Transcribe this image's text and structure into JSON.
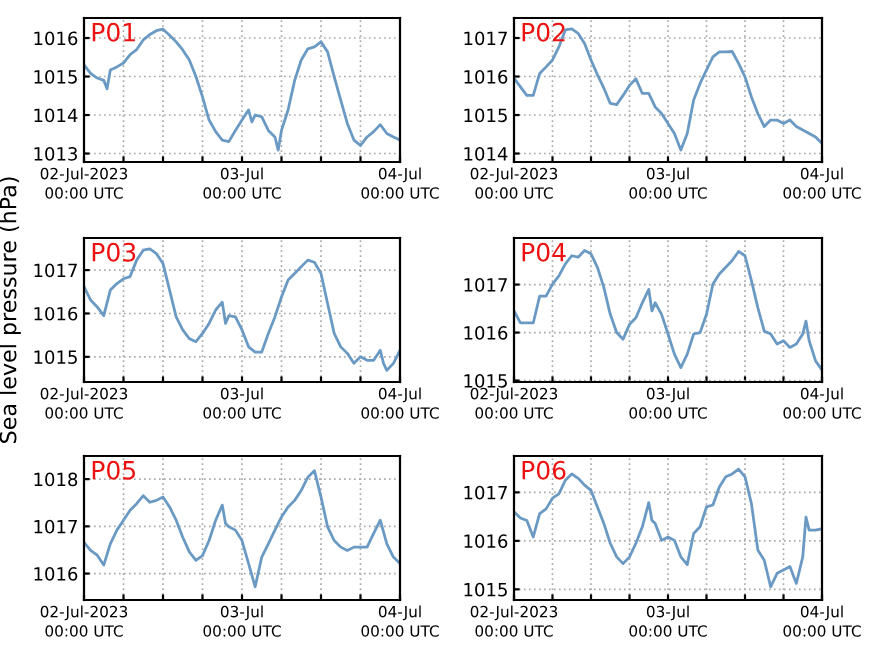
{
  "chart_data": [
    {
      "type": "line",
      "title": "P01",
      "x": [
        "2023-07-02T00:00",
        "2023-07-02T01:00",
        "2023-07-02T02:00",
        "2023-07-02T03:00",
        "2023-07-02T03:30",
        "2023-07-02T04:00",
        "2023-07-02T05:00",
        "2023-07-02T06:00",
        "2023-07-02T07:00",
        "2023-07-02T08:00",
        "2023-07-02T09:00",
        "2023-07-02T10:00",
        "2023-07-02T11:00",
        "2023-07-02T12:00",
        "2023-07-02T13:00",
        "2023-07-02T14:00",
        "2023-07-02T15:00",
        "2023-07-02T16:00",
        "2023-07-02T17:00",
        "2023-07-02T18:00",
        "2023-07-02T19:00",
        "2023-07-02T20:00",
        "2023-07-02T21:00",
        "2023-07-02T22:00",
        "2023-07-02T23:00",
        "2023-07-03T00:00",
        "2023-07-03T01:00",
        "2023-07-03T01:30",
        "2023-07-03T02:00",
        "2023-07-03T03:00",
        "2023-07-03T04:00",
        "2023-07-03T05:00",
        "2023-07-03T05:30",
        "2023-07-03T06:00",
        "2023-07-03T07:00",
        "2023-07-03T08:00",
        "2023-07-03T09:00",
        "2023-07-03T10:00",
        "2023-07-03T11:00",
        "2023-07-03T12:00",
        "2023-07-03T13:00",
        "2023-07-03T14:00",
        "2023-07-03T15:00",
        "2023-07-03T16:00",
        "2023-07-03T17:00",
        "2023-07-03T18:00",
        "2023-07-03T19:00",
        "2023-07-03T20:00",
        "2023-07-03T21:00",
        "2023-07-03T22:00",
        "2023-07-03T23:00",
        "2023-07-04T00:00"
      ],
      "series": [
        {
          "color": "#6a9ac4",
          "values": [
            1015.3,
            1015.08,
            1014.96,
            1014.9,
            1014.68,
            1015.17,
            1015.25,
            1015.35,
            1015.57,
            1015.7,
            1015.95,
            1016.09,
            1016.19,
            1016.23,
            1016.07,
            1015.9,
            1015.69,
            1015.43,
            1015.0,
            1014.47,
            1013.87,
            1013.57,
            1013.35,
            1013.31,
            1013.6,
            1013.87,
            1014.13,
            1013.82,
            1014.0,
            1013.95,
            1013.6,
            1013.43,
            1013.09,
            1013.6,
            1014.13,
            1014.9,
            1015.43,
            1015.72,
            1015.77,
            1015.9,
            1015.64,
            1015.0,
            1014.39,
            1013.78,
            1013.35,
            1013.21,
            1013.43,
            1013.57,
            1013.75,
            1013.52,
            1013.43,
            1013.35
          ]
        }
      ],
      "xlim": [
        "2023-07-02T00:00",
        "2023-07-04T00:00"
      ],
      "xticks": [
        {
          "value": "2023-07-02T00:00",
          "label": "02-Jul-2023\n00:00 UTC"
        },
        {
          "value": "2023-07-02T06:00",
          "label": null
        },
        {
          "value": "2023-07-02T12:00",
          "label": null
        },
        {
          "value": "2023-07-02T18:00",
          "label": null
        },
        {
          "value": "2023-07-03T00:00",
          "label": "03-Jul\n00:00 UTC"
        },
        {
          "value": "2023-07-03T06:00",
          "label": null
        },
        {
          "value": "2023-07-03T12:00",
          "label": null
        },
        {
          "value": "2023-07-03T18:00",
          "label": null
        },
        {
          "value": "2023-07-04T00:00",
          "label": "04-Jul\n00:00 UTC"
        }
      ],
      "ylim": [
        1012.78,
        1016.52
      ],
      "yticks": [
        1013,
        1014,
        1015,
        1016
      ],
      "grid": true
    },
    {
      "type": "line",
      "title": "P02",
      "x": [
        "2023-07-02T00:00",
        "2023-07-02T01:00",
        "2023-07-02T02:00",
        "2023-07-02T03:00",
        "2023-07-02T04:00",
        "2023-07-02T05:00",
        "2023-07-02T06:00",
        "2023-07-02T07:00",
        "2023-07-02T08:00",
        "2023-07-02T09:00",
        "2023-07-02T10:00",
        "2023-07-02T11:00",
        "2023-07-02T12:00",
        "2023-07-02T13:00",
        "2023-07-02T14:00",
        "2023-07-02T15:00",
        "2023-07-02T16:00",
        "2023-07-02T17:00",
        "2023-07-02T18:00",
        "2023-07-02T19:00",
        "2023-07-02T20:00",
        "2023-07-02T21:00",
        "2023-07-02T22:00",
        "2023-07-02T23:00",
        "2023-07-03T00:00",
        "2023-07-03T01:00",
        "2023-07-03T02:00",
        "2023-07-03T03:00",
        "2023-07-03T04:00",
        "2023-07-03T05:00",
        "2023-07-03T06:00",
        "2023-07-03T07:00",
        "2023-07-03T08:00",
        "2023-07-03T09:00",
        "2023-07-03T10:00",
        "2023-07-03T11:00",
        "2023-07-03T12:00",
        "2023-07-03T13:00",
        "2023-07-03T14:00",
        "2023-07-03T15:00",
        "2023-07-03T16:00",
        "2023-07-03T17:00",
        "2023-07-03T18:00",
        "2023-07-03T19:00",
        "2023-07-03T20:00",
        "2023-07-03T21:00",
        "2023-07-03T22:00",
        "2023-07-03T23:00",
        "2023-07-04T00:00"
      ],
      "series": [
        {
          "color": "#6a9ac4",
          "values": [
            1015.96,
            1015.73,
            1015.51,
            1015.51,
            1016.08,
            1016.25,
            1016.43,
            1016.77,
            1017.21,
            1017.24,
            1017.12,
            1016.86,
            1016.43,
            1016.05,
            1015.7,
            1015.3,
            1015.27,
            1015.51,
            1015.77,
            1015.94,
            1015.56,
            1015.56,
            1015.21,
            1015.04,
            1014.78,
            1014.52,
            1014.09,
            1014.52,
            1015.39,
            1015.82,
            1016.17,
            1016.51,
            1016.64,
            1016.64,
            1016.65,
            1016.34,
            1015.99,
            1015.47,
            1015.04,
            1014.7,
            1014.87,
            1014.87,
            1014.78,
            1014.87,
            1014.7,
            1014.61,
            1014.52,
            1014.43,
            1014.26
          ]
        }
      ],
      "xlim": [
        "2023-07-02T00:00",
        "2023-07-04T00:00"
      ],
      "xticks": [
        {
          "value": "2023-07-02T00:00",
          "label": "02-Jul-2023\n00:00 UTC"
        },
        {
          "value": "2023-07-02T06:00",
          "label": null
        },
        {
          "value": "2023-07-02T12:00",
          "label": null
        },
        {
          "value": "2023-07-02T18:00",
          "label": null
        },
        {
          "value": "2023-07-03T00:00",
          "label": "03-Jul\n00:00 UTC"
        },
        {
          "value": "2023-07-03T06:00",
          "label": null
        },
        {
          "value": "2023-07-03T12:00",
          "label": null
        },
        {
          "value": "2023-07-03T18:00",
          "label": null
        },
        {
          "value": "2023-07-04T00:00",
          "label": "04-Jul\n00:00 UTC"
        }
      ],
      "ylim": [
        1013.78,
        1017.52
      ],
      "yticks": [
        1014,
        1015,
        1016,
        1017
      ],
      "grid": true
    },
    {
      "type": "line",
      "title": "P03",
      "ylabel": "Sea level pressure (hPa)",
      "x": [
        "2023-07-02T00:00",
        "2023-07-02T01:00",
        "2023-07-02T02:00",
        "2023-07-02T03:00",
        "2023-07-02T04:00",
        "2023-07-02T05:00",
        "2023-07-02T06:00",
        "2023-07-02T07:00",
        "2023-07-02T08:00",
        "2023-07-02T09:00",
        "2023-07-02T10:00",
        "2023-07-02T11:00",
        "2023-07-02T12:00",
        "2023-07-02T13:00",
        "2023-07-02T14:00",
        "2023-07-02T15:00",
        "2023-07-02T16:00",
        "2023-07-02T17:00",
        "2023-07-02T18:00",
        "2023-07-02T19:00",
        "2023-07-02T20:00",
        "2023-07-02T21:00",
        "2023-07-02T21:30",
        "2023-07-02T22:00",
        "2023-07-02T23:00",
        "2023-07-03T00:00",
        "2023-07-03T01:00",
        "2023-07-03T02:00",
        "2023-07-03T03:00",
        "2023-07-03T04:00",
        "2023-07-03T05:00",
        "2023-07-03T06:00",
        "2023-07-03T07:00",
        "2023-07-03T08:00",
        "2023-07-03T09:00",
        "2023-07-03T10:00",
        "2023-07-03T11:00",
        "2023-07-03T12:00",
        "2023-07-03T13:00",
        "2023-07-03T14:00",
        "2023-07-03T15:00",
        "2023-07-03T16:00",
        "2023-07-03T17:00",
        "2023-07-03T18:00",
        "2023-07-03T19:00",
        "2023-07-03T20:00",
        "2023-07-03T21:00",
        "2023-07-03T21:30",
        "2023-07-03T22:00",
        "2023-07-03T23:00",
        "2023-07-04T00:00"
      ],
      "series": [
        {
          "color": "#6a9ac4",
          "values": [
            1016.62,
            1016.31,
            1016.15,
            1015.95,
            1016.54,
            1016.69,
            1016.8,
            1016.85,
            1017.23,
            1017.46,
            1017.49,
            1017.38,
            1017.15,
            1016.54,
            1015.92,
            1015.62,
            1015.42,
            1015.35,
            1015.54,
            1015.77,
            1016.08,
            1016.26,
            1015.77,
            1015.95,
            1015.92,
            1015.62,
            1015.23,
            1015.11,
            1015.11,
            1015.54,
            1015.92,
            1016.38,
            1016.77,
            1016.92,
            1017.08,
            1017.23,
            1017.18,
            1016.92,
            1016.23,
            1015.54,
            1015.23,
            1015.08,
            1014.85,
            1015.0,
            1014.92,
            1014.92,
            1015.15,
            1014.85,
            1014.69,
            1014.85,
            1015.15
          ]
        }
      ],
      "xlim": [
        "2023-07-02T00:00",
        "2023-07-04T00:00"
      ],
      "xticks": [
        {
          "value": "2023-07-02T00:00",
          "label": "02-Jul-2023\n00:00 UTC"
        },
        {
          "value": "2023-07-02T06:00",
          "label": null
        },
        {
          "value": "2023-07-02T12:00",
          "label": null
        },
        {
          "value": "2023-07-02T18:00",
          "label": null
        },
        {
          "value": "2023-07-03T00:00",
          "label": "03-Jul\n00:00 UTC"
        },
        {
          "value": "2023-07-03T06:00",
          "label": null
        },
        {
          "value": "2023-07-03T12:00",
          "label": null
        },
        {
          "value": "2023-07-03T18:00",
          "label": null
        },
        {
          "value": "2023-07-04T00:00",
          "label": "04-Jul\n00:00 UTC"
        }
      ],
      "ylim": [
        1014.42,
        1017.74
      ],
      "yticks": [
        1015,
        1016,
        1017
      ],
      "grid": true
    },
    {
      "type": "line",
      "title": "P04",
      "x": [
        "2023-07-02T00:00",
        "2023-07-02T01:00",
        "2023-07-02T02:00",
        "2023-07-02T03:00",
        "2023-07-02T04:00",
        "2023-07-02T05:00",
        "2023-07-02T06:00",
        "2023-07-02T07:00",
        "2023-07-02T08:00",
        "2023-07-02T09:00",
        "2023-07-02T10:00",
        "2023-07-02T11:00",
        "2023-07-02T12:00",
        "2023-07-02T13:00",
        "2023-07-02T14:00",
        "2023-07-02T15:00",
        "2023-07-02T16:00",
        "2023-07-02T17:00",
        "2023-07-02T18:00",
        "2023-07-02T19:00",
        "2023-07-02T20:00",
        "2023-07-02T21:00",
        "2023-07-02T21:30",
        "2023-07-02T22:00",
        "2023-07-02T23:00",
        "2023-07-03T00:00",
        "2023-07-03T01:00",
        "2023-07-03T02:00",
        "2023-07-03T03:00",
        "2023-07-03T04:00",
        "2023-07-03T05:00",
        "2023-07-03T06:00",
        "2023-07-03T07:00",
        "2023-07-03T08:00",
        "2023-07-03T09:00",
        "2023-07-03T10:00",
        "2023-07-03T11:00",
        "2023-07-03T12:00",
        "2023-07-03T13:00",
        "2023-07-03T14:00",
        "2023-07-03T15:00",
        "2023-07-03T16:00",
        "2023-07-03T17:00",
        "2023-07-03T18:00",
        "2023-07-03T19:00",
        "2023-07-03T20:00",
        "2023-07-03T21:00",
        "2023-07-03T21:30",
        "2023-07-03T22:00",
        "2023-07-03T23:00",
        "2023-07-04T00:00"
      ],
      "series": [
        {
          "color": "#6a9ac4",
          "values": [
            1016.45,
            1016.2,
            1016.2,
            1016.2,
            1016.76,
            1016.76,
            1017.01,
            1017.18,
            1017.43,
            1017.6,
            1017.57,
            1017.71,
            1017.64,
            1017.36,
            1016.94,
            1016.38,
            1016.0,
            1015.86,
            1016.17,
            1016.31,
            1016.62,
            1016.9,
            1016.45,
            1016.62,
            1016.38,
            1015.97,
            1015.55,
            1015.27,
            1015.55,
            1015.97,
            1016.0,
            1016.38,
            1017.01,
            1017.22,
            1017.36,
            1017.5,
            1017.69,
            1017.6,
            1017.08,
            1016.52,
            1016.03,
            1015.97,
            1015.76,
            1015.83,
            1015.69,
            1015.76,
            1015.97,
            1016.24,
            1015.83,
            1015.41,
            1015.22
          ]
        }
      ],
      "xlim": [
        "2023-07-02T00:00",
        "2023-07-04T00:00"
      ],
      "xticks": [
        {
          "value": "2023-07-02T00:00",
          "label": "02-Jul-2023\n00:00 UTC"
        },
        {
          "value": "2023-07-02T06:00",
          "label": null
        },
        {
          "value": "2023-07-02T12:00",
          "label": null
        },
        {
          "value": "2023-07-02T18:00",
          "label": null
        },
        {
          "value": "2023-07-03T00:00",
          "label": "03-Jul\n00:00 UTC"
        },
        {
          "value": "2023-07-03T06:00",
          "label": null
        },
        {
          "value": "2023-07-03T12:00",
          "label": null
        },
        {
          "value": "2023-07-03T18:00",
          "label": null
        },
        {
          "value": "2023-07-04T00:00",
          "label": "04-Jul\n00:00 UTC"
        }
      ],
      "ylim": [
        1014.97,
        1017.97
      ],
      "yticks": [
        1015,
        1016,
        1017
      ],
      "grid": true
    },
    {
      "type": "line",
      "title": "P05",
      "x": [
        "2023-07-02T00:00",
        "2023-07-02T01:00",
        "2023-07-02T02:00",
        "2023-07-02T03:00",
        "2023-07-02T04:00",
        "2023-07-02T05:00",
        "2023-07-02T06:00",
        "2023-07-02T07:00",
        "2023-07-02T08:00",
        "2023-07-02T09:00",
        "2023-07-02T10:00",
        "2023-07-02T11:00",
        "2023-07-02T12:00",
        "2023-07-02T13:00",
        "2023-07-02T14:00",
        "2023-07-02T15:00",
        "2023-07-02T16:00",
        "2023-07-02T17:00",
        "2023-07-02T18:00",
        "2023-07-02T19:00",
        "2023-07-02T20:00",
        "2023-07-02T21:00",
        "2023-07-02T21:30",
        "2023-07-02T22:00",
        "2023-07-02T23:00",
        "2023-07-03T00:00",
        "2023-07-03T01:00",
        "2023-07-03T02:00",
        "2023-07-03T03:00",
        "2023-07-03T04:00",
        "2023-07-03T05:00",
        "2023-07-03T06:00",
        "2023-07-03T07:00",
        "2023-07-03T08:00",
        "2023-07-03T09:00",
        "2023-07-03T10:00",
        "2023-07-03T11:00",
        "2023-07-03T12:00",
        "2023-07-03T13:00",
        "2023-07-03T14:00",
        "2023-07-03T15:00",
        "2023-07-03T16:00",
        "2023-07-03T17:00",
        "2023-07-03T18:00",
        "2023-07-03T19:00",
        "2023-07-03T20:00",
        "2023-07-03T21:00",
        "2023-07-03T22:00",
        "2023-07-03T23:00",
        "2023-07-04T00:00"
      ],
      "series": [
        {
          "color": "#6a9ac4",
          "values": [
            1016.66,
            1016.49,
            1016.39,
            1016.18,
            1016.63,
            1016.92,
            1017.13,
            1017.34,
            1017.48,
            1017.65,
            1017.51,
            1017.55,
            1017.62,
            1017.41,
            1017.13,
            1016.77,
            1016.46,
            1016.28,
            1016.38,
            1016.7,
            1017.13,
            1017.45,
            1017.06,
            1016.99,
            1016.92,
            1016.7,
            1016.21,
            1015.72,
            1016.35,
            1016.63,
            1016.92,
            1017.2,
            1017.41,
            1017.55,
            1017.76,
            1018.04,
            1018.18,
            1017.62,
            1016.99,
            1016.7,
            1016.56,
            1016.49,
            1016.56,
            1016.56,
            1016.56,
            1016.85,
            1017.13,
            1016.63,
            1016.35,
            1016.21
          ]
        }
      ],
      "xlim": [
        "2023-07-02T00:00",
        "2023-07-04T00:00"
      ],
      "xticks": [
        {
          "value": "2023-07-02T00:00",
          "label": "02-Jul-2023\n00:00 UTC"
        },
        {
          "value": "2023-07-02T06:00",
          "label": null
        },
        {
          "value": "2023-07-02T12:00",
          "label": null
        },
        {
          "value": "2023-07-02T18:00",
          "label": null
        },
        {
          "value": "2023-07-03T00:00",
          "label": "03-Jul\n00:00 UTC"
        },
        {
          "value": "2023-07-03T06:00",
          "label": null
        },
        {
          "value": "2023-07-03T12:00",
          "label": null
        },
        {
          "value": "2023-07-03T18:00",
          "label": null
        },
        {
          "value": "2023-07-04T00:00",
          "label": "04-Jul\n00:00 UTC"
        }
      ],
      "ylim": [
        1015.44,
        1018.49
      ],
      "yticks": [
        1016,
        1017,
        1018
      ],
      "grid": true
    },
    {
      "type": "line",
      "title": "P06",
      "x": [
        "2023-07-02T00:00",
        "2023-07-02T01:00",
        "2023-07-02T02:00",
        "2023-07-02T03:00",
        "2023-07-02T04:00",
        "2023-07-02T05:00",
        "2023-07-02T06:00",
        "2023-07-02T07:00",
        "2023-07-02T08:00",
        "2023-07-02T09:00",
        "2023-07-02T10:00",
        "2023-07-02T11:00",
        "2023-07-02T12:00",
        "2023-07-02T13:00",
        "2023-07-02T14:00",
        "2023-07-02T15:00",
        "2023-07-02T16:00",
        "2023-07-02T17:00",
        "2023-07-02T18:00",
        "2023-07-02T19:00",
        "2023-07-02T20:00",
        "2023-07-02T21:00",
        "2023-07-02T21:30",
        "2023-07-02T22:00",
        "2023-07-02T23:00",
        "2023-07-03T00:00",
        "2023-07-03T01:00",
        "2023-07-03T02:00",
        "2023-07-03T03:00",
        "2023-07-03T04:00",
        "2023-07-03T05:00",
        "2023-07-03T06:00",
        "2023-07-03T07:00",
        "2023-07-03T08:00",
        "2023-07-03T09:00",
        "2023-07-03T10:00",
        "2023-07-03T11:00",
        "2023-07-03T12:00",
        "2023-07-03T13:00",
        "2023-07-03T14:00",
        "2023-07-03T15:00",
        "2023-07-03T16:00",
        "2023-07-03T17:00",
        "2023-07-03T18:00",
        "2023-07-03T19:00",
        "2023-07-03T20:00",
        "2023-07-03T21:00",
        "2023-07-03T21:30",
        "2023-07-03T22:00",
        "2023-07-03T23:00",
        "2023-07-04T00:00"
      ],
      "series": [
        {
          "color": "#6a9ac4",
          "values": [
            1016.6,
            1016.47,
            1016.42,
            1016.08,
            1016.56,
            1016.66,
            1016.88,
            1016.97,
            1017.25,
            1017.38,
            1017.29,
            1017.15,
            1017.04,
            1016.7,
            1016.36,
            1015.95,
            1015.67,
            1015.53,
            1015.67,
            1015.95,
            1016.29,
            1016.79,
            1016.42,
            1016.36,
            1016.01,
            1016.08,
            1016.01,
            1015.67,
            1015.51,
            1016.15,
            1016.29,
            1016.7,
            1016.74,
            1017.11,
            1017.32,
            1017.38,
            1017.48,
            1017.32,
            1016.77,
            1015.81,
            1015.6,
            1015.05,
            1015.33,
            1015.4,
            1015.47,
            1015.12,
            1015.67,
            1016.49,
            1016.22,
            1016.22,
            1016.25
          ]
        }
      ],
      "xlim": [
        "2023-07-02T00:00",
        "2023-07-04T00:00"
      ],
      "xticks": [
        {
          "value": "2023-07-02T00:00",
          "label": "02-Jul-2023\n00:00 UTC"
        },
        {
          "value": "2023-07-02T06:00",
          "label": null
        },
        {
          "value": "2023-07-02T12:00",
          "label": null
        },
        {
          "value": "2023-07-02T18:00",
          "label": null
        },
        {
          "value": "2023-07-03T00:00",
          "label": "03-Jul\n00:00 UTC"
        },
        {
          "value": "2023-07-03T06:00",
          "label": null
        },
        {
          "value": "2023-07-03T12:00",
          "label": null
        },
        {
          "value": "2023-07-03T18:00",
          "label": null
        },
        {
          "value": "2023-07-04T00:00",
          "label": "04-Jul\n00:00 UTC"
        }
      ],
      "ylim": [
        1014.78,
        1017.75
      ],
      "yticks": [
        1015,
        1016,
        1017
      ],
      "grid": true
    }
  ]
}
